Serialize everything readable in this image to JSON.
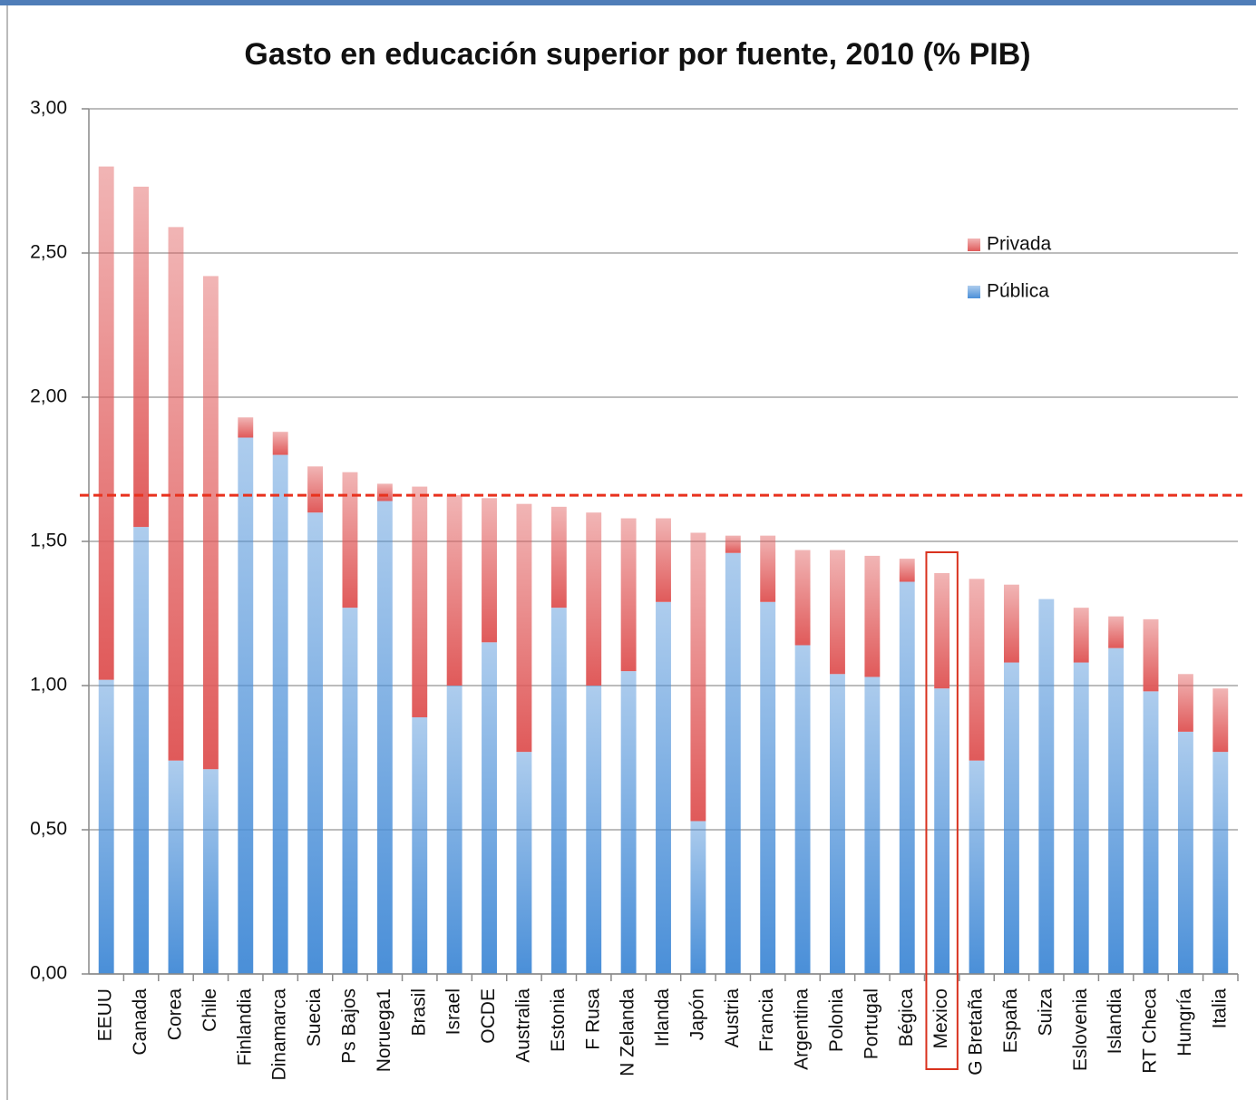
{
  "chart_data": {
    "type": "stacked_bar",
    "title": "Gasto en educación superior por fuente, 2010 (% PIB)",
    "categories": [
      "EEUU",
      "Canada",
      "Corea",
      "Chile",
      "Finlandia",
      "Dinamarca",
      "Suecia",
      "Ps Bajos",
      "Noruega1",
      "Brasil",
      "Israel",
      "OCDE",
      "Australia",
      "Estonia",
      "F Rusa",
      "N Zelanda",
      "Irlanda",
      "Japón",
      "Austria",
      "Francia",
      "Argentina",
      "Polonia",
      "Portugal",
      "Bégica",
      "Mexico",
      "G Bretaña",
      "España",
      "Suiza",
      "Eslovenia",
      "Islandia",
      "RT Checa",
      "Hungría",
      "Italia"
    ],
    "series": [
      {
        "name": "Pública",
        "color": "#4a8fd8",
        "values": [
          1.02,
          1.55,
          0.74,
          0.71,
          1.86,
          1.8,
          1.6,
          1.27,
          1.64,
          0.89,
          1.0,
          1.15,
          0.77,
          1.27,
          1.0,
          1.05,
          1.29,
          0.53,
          1.46,
          1.29,
          1.14,
          1.04,
          1.03,
          1.36,
          0.99,
          0.74,
          1.08,
          1.3,
          1.08,
          1.13,
          0.98,
          0.84,
          0.77
        ]
      },
      {
        "name": "Privada",
        "color": "#e05a5a",
        "values": [
          1.78,
          1.18,
          1.85,
          1.71,
          0.07,
          0.08,
          0.16,
          0.47,
          0.06,
          0.8,
          0.66,
          0.5,
          0.86,
          0.35,
          0.6,
          0.53,
          0.29,
          1.0,
          0.06,
          0.23,
          0.33,
          0.43,
          0.42,
          0.08,
          0.4,
          0.63,
          0.27,
          0,
          0.19,
          0.11,
          0.25,
          0.2,
          0.22
        ]
      }
    ],
    "ylim": [
      0,
      3
    ],
    "yticks": [
      {
        "value": 0,
        "label": "0,00"
      },
      {
        "value": 0.5,
        "label": "0,50"
      },
      {
        "value": 1,
        "label": "1,00"
      },
      {
        "value": 1.5,
        "label": "1,50"
      },
      {
        "value": 2,
        "label": "2,00"
      },
      {
        "value": 2.5,
        "label": "2,50"
      },
      {
        "value": 3,
        "label": "3,00"
      }
    ],
    "grid": true,
    "legend": "right",
    "reference_line": {
      "value": 1.66,
      "color": "#e8321e"
    },
    "highlight": {
      "category": "Mexico",
      "color": "#d9321e"
    }
  }
}
